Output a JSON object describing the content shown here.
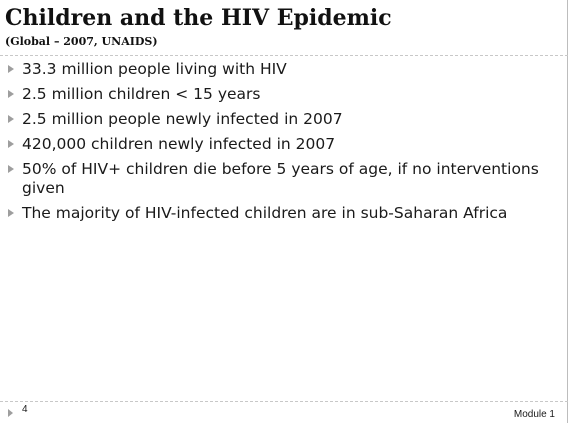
{
  "slide": {
    "title": "Children and the HIV Epidemic",
    "subtitle": "(Global – 2007, UNAIDS)",
    "bullets": [
      "33.3 million people living with HIV",
      "2.5 million children < 15 years",
      "2.5 million people newly infected in 2007",
      "420,000 children newly infected in 2007",
      "50% of HIV+ children die before 5 years of age, if no interventions given",
      "The majority of HIV-infected children are in sub-Saharan Africa"
    ],
    "footer": {
      "page_number": "4",
      "module_label": "Module 1"
    }
  },
  "icons": {
    "bullet": "triangle-bullet-icon",
    "footer": "triangle-footer-icon"
  },
  "colors": {
    "bullet_marker": "#9e9e9e",
    "divider": "#c8c8c8",
    "text": "#1a1a1a"
  }
}
